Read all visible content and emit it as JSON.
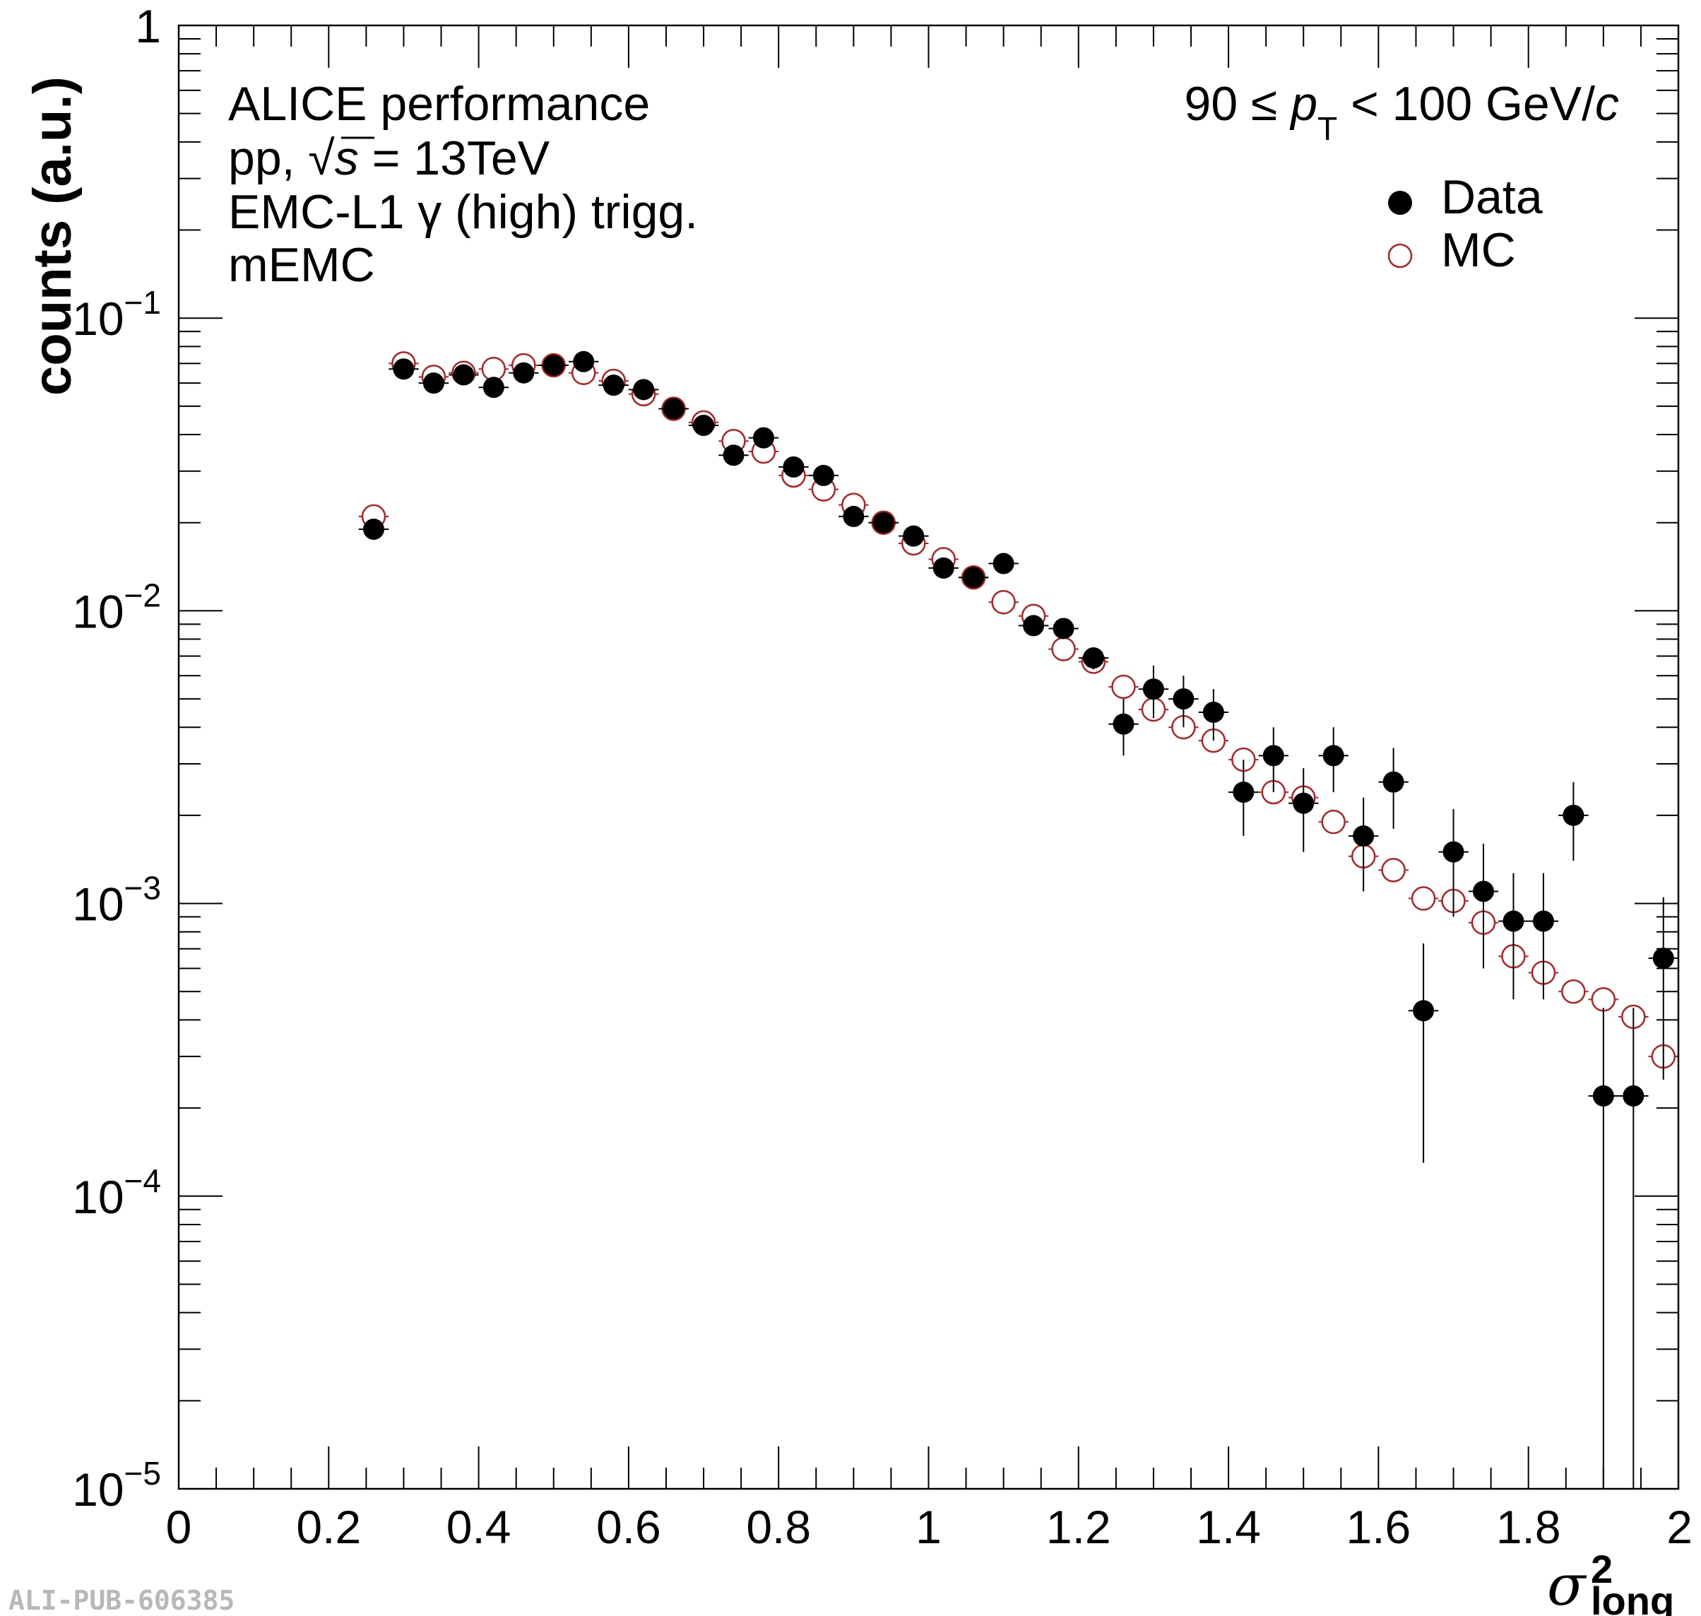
{
  "chart_data": {
    "type": "scatter",
    "xlabel": "σ",
    "xlabel_sup": "2",
    "xlabel_sub": "long",
    "ylabel": "counts (a.u.)",
    "xlim": [
      0,
      2
    ],
    "ylim": [
      1e-05,
      1
    ],
    "y_scale": "log",
    "grid": false,
    "legend_position": "top-right",
    "x_tick_labels": [
      "0",
      "0.2",
      "0.4",
      "0.6",
      "0.8",
      "1",
      "1.2",
      "1.4",
      "1.6",
      "1.8",
      "2"
    ],
    "y_tick_labels": [
      {
        "base": "1",
        "exp": ""
      },
      {
        "base": "10",
        "exp": "−1"
      },
      {
        "base": "10",
        "exp": "−2"
      },
      {
        "base": "10",
        "exp": "−3"
      },
      {
        "base": "10",
        "exp": "−4"
      },
      {
        "base": "10",
        "exp": "−5"
      }
    ],
    "annotations": {
      "line1": "ALICE performance",
      "line2_pre": "pp, ",
      "line2_sqrt": "√",
      "line2_s": "s",
      "line2_post": " = 13TeV",
      "line3": "EMC-L1 γ (high) trigg.",
      "line4": "mEMC",
      "pt_pre": "90 ≤ ",
      "pt_p": "p",
      "pt_sub": "T",
      "pt_post": " < 100 GeV/",
      "pt_c": "c"
    },
    "series": [
      {
        "name": "Data",
        "color": "#000000",
        "marker": "filled-circle",
        "x": [
          0.26,
          0.3,
          0.34,
          0.38,
          0.42,
          0.46,
          0.5,
          0.54,
          0.58,
          0.62,
          0.66,
          0.7,
          0.74,
          0.78,
          0.82,
          0.86,
          0.9,
          0.94,
          0.98,
          1.02,
          1.06,
          1.1,
          1.14,
          1.18,
          1.22,
          1.26,
          1.3,
          1.34,
          1.38,
          1.42,
          1.46,
          1.5,
          1.54,
          1.58,
          1.62,
          1.66,
          1.7,
          1.74,
          1.78,
          1.82,
          1.86,
          1.9,
          1.94,
          1.98
        ],
        "y": [
          0.019,
          0.067,
          0.06,
          0.064,
          0.058,
          0.065,
          0.069,
          0.071,
          0.059,
          0.057,
          0.049,
          0.043,
          0.034,
          0.039,
          0.031,
          0.029,
          0.021,
          0.02,
          0.018,
          0.014,
          0.013,
          0.0145,
          0.0089,
          0.0087,
          0.0069,
          0.0041,
          0.0054,
          0.005,
          0.0045,
          0.0024,
          0.0032,
          0.0022,
          0.0032,
          0.0017,
          0.0026,
          0.00043,
          0.0015,
          0.0011,
          0.00087,
          0.00087,
          0.002,
          0.00022,
          0.00022,
          0.00065
        ],
        "y_err": [
          0.0015,
          0.002,
          0.002,
          0.002,
          0.002,
          0.002,
          0.002,
          0.002,
          0.002,
          0.002,
          0.0018,
          0.0016,
          0.0014,
          0.0015,
          0.0013,
          0.0012,
          0.001,
          0.001,
          0.0009,
          0.0008,
          0.0008,
          0.0009,
          0.0007,
          0.0007,
          0.0006,
          0.0009,
          0.0011,
          0.001,
          0.0009,
          0.0007,
          0.0008,
          0.0007,
          0.0008,
          0.0006,
          0.0008,
          0.0003,
          0.0006,
          0.0005,
          0.0004,
          0.0004,
          0.0006,
          0.00022,
          0.00022,
          0.0004
        ]
      },
      {
        "name": "MC",
        "color": "#b22222",
        "marker": "open-circle",
        "x": [
          0.26,
          0.3,
          0.34,
          0.38,
          0.42,
          0.46,
          0.5,
          0.54,
          0.58,
          0.62,
          0.66,
          0.7,
          0.74,
          0.78,
          0.82,
          0.86,
          0.9,
          0.94,
          0.98,
          1.02,
          1.06,
          1.1,
          1.14,
          1.18,
          1.22,
          1.26,
          1.3,
          1.34,
          1.38,
          1.42,
          1.46,
          1.5,
          1.54,
          1.58,
          1.62,
          1.66,
          1.7,
          1.74,
          1.78,
          1.82,
          1.86,
          1.9,
          1.94,
          1.98
        ],
        "y": [
          0.021,
          0.07,
          0.063,
          0.065,
          0.067,
          0.069,
          0.069,
          0.065,
          0.061,
          0.055,
          0.049,
          0.044,
          0.038,
          0.035,
          0.029,
          0.026,
          0.023,
          0.02,
          0.017,
          0.015,
          0.013,
          0.0107,
          0.0096,
          0.0074,
          0.0067,
          0.0055,
          0.0046,
          0.004,
          0.0036,
          0.0031,
          0.0024,
          0.0023,
          0.0019,
          0.00145,
          0.0013,
          0.00104,
          0.00102,
          0.00086,
          0.00066,
          0.00058,
          0.0005,
          0.00047,
          0.00041,
          0.0003
        ]
      }
    ]
  },
  "watermark": "ALI-PUB-606385"
}
